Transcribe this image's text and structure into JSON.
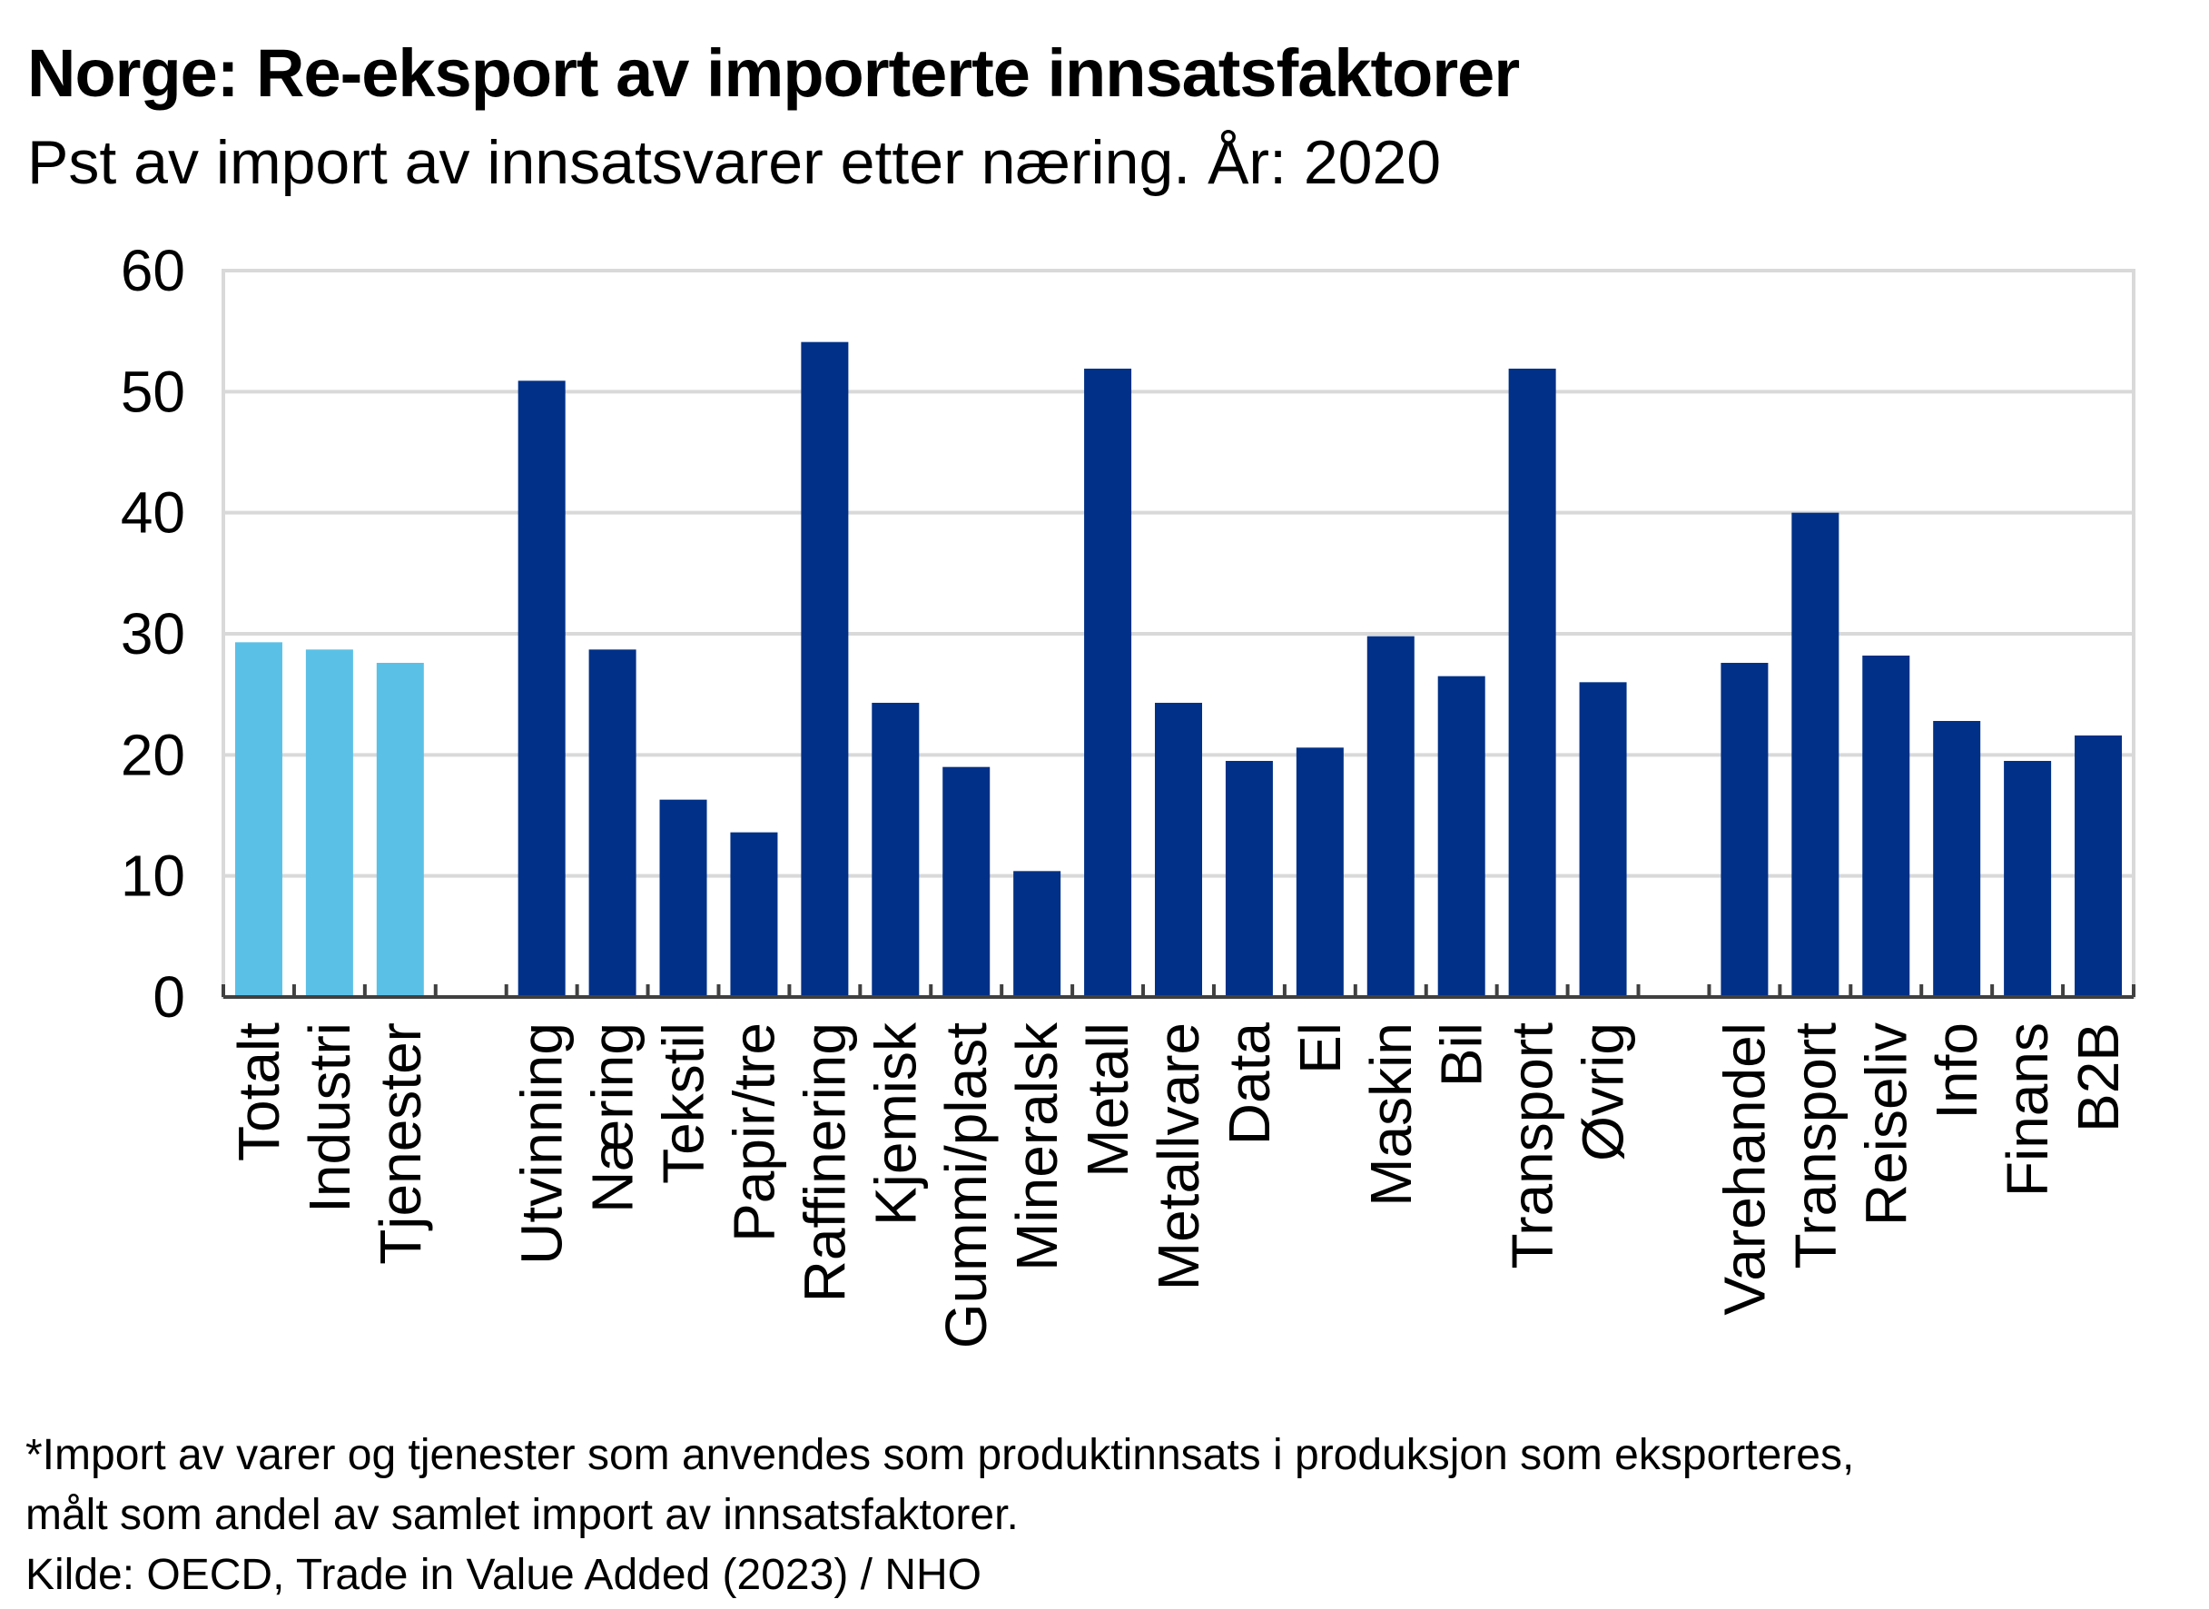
{
  "title": "Norge: Re-eksport av importerte innsatsfaktorer",
  "subtitle": "Pst av import av innsatsvarer etter næring. År: 2020",
  "footnotes": [
    "*Import av varer og tjenester som anvendes som produktinnsats i produksjon som eksporteres,",
    "målt som andel av samlet import av innsatsfaktorer.",
    "Kilde: OECD, Trade in Value Added (2023)  / NHO"
  ],
  "colors": {
    "aggregate": "#5bc0e6",
    "sector": "#003087",
    "grid": "#d9d9d9",
    "axis": "#404040"
  },
  "chart_data": {
    "type": "bar",
    "ylim": [
      0,
      60
    ],
    "yticks": [
      0,
      10,
      20,
      30,
      40,
      50,
      60
    ],
    "grid": true,
    "xlabel": "",
    "ylabel": "",
    "categories": [
      "Totalt",
      "Industri",
      "Tjenester",
      "",
      "Utvinning",
      "Næring",
      "Tekstil",
      "Papir/tre",
      "Raffinering",
      "Kjemisk",
      "Gummi/plast",
      "Mineralsk",
      "Metall",
      "Metallvare",
      "Data",
      "El",
      "Maskin",
      "Bil",
      "Transport",
      "Øvrig",
      "",
      "Varehandel",
      "Transport",
      "Reiseliv",
      "Info",
      "Finans",
      "B2B"
    ],
    "values": [
      29.3,
      28.7,
      27.6,
      null,
      50.9,
      28.7,
      16.3,
      13.6,
      54.1,
      24.3,
      19.0,
      10.4,
      51.9,
      24.3,
      19.5,
      20.6,
      29.8,
      26.5,
      51.9,
      26.0,
      null,
      27.6,
      40.0,
      28.2,
      22.8,
      19.5,
      21.6
    ],
    "groups": [
      "aggregate",
      "aggregate",
      "aggregate",
      null,
      "sector",
      "sector",
      "sector",
      "sector",
      "sector",
      "sector",
      "sector",
      "sector",
      "sector",
      "sector",
      "sector",
      "sector",
      "sector",
      "sector",
      "sector",
      "sector",
      null,
      "sector",
      "sector",
      "sector",
      "sector",
      "sector",
      "sector"
    ]
  }
}
